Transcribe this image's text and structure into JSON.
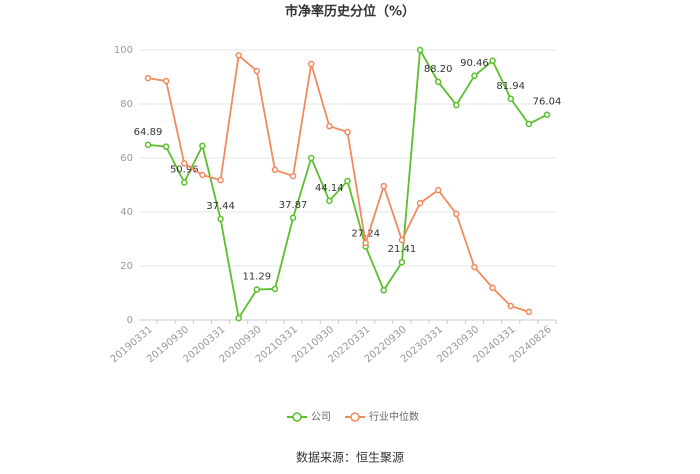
{
  "chart_data": {
    "type": "line",
    "title": "市净率历史分位（%）",
    "categories": [
      "20190331",
      null,
      "20190930",
      null,
      "20200331",
      null,
      "20200930",
      null,
      "20210331",
      null,
      "20210930",
      null,
      "20220331",
      null,
      "20220930",
      null,
      "20230331",
      null,
      "20230930",
      null,
      "20240331",
      null,
      "20240826"
    ],
    "series": [
      {
        "name": "公司",
        "color": "#5bbf2e",
        "values": [
          64.89,
          64.2,
          50.96,
          64.5,
          37.44,
          0.7,
          11.29,
          11.5,
          37.87,
          60,
          44.14,
          51.5,
          27.24,
          11,
          21.41,
          100,
          88.2,
          79.6,
          90.46,
          96,
          81.94,
          72.6,
          76.04
        ],
        "value_labels": [
          "64.89",
          null,
          "50.96",
          null,
          "37.44",
          null,
          "11.29",
          null,
          "37.87",
          null,
          "44.14",
          null,
          "27.24",
          null,
          "21.41",
          null,
          "88.20",
          null,
          "90.46",
          null,
          "81.94",
          null,
          "76.04"
        ]
      },
      {
        "name": "行业中位数",
        "color": "#f28a5f",
        "values": [
          89.6,
          88.5,
          58,
          53.7,
          51.8,
          98,
          92.2,
          55.6,
          53.3,
          94.8,
          71.8,
          69.6,
          28.5,
          49.6,
          29.6,
          43.3,
          48.1,
          39.3,
          19.6,
          11.9,
          5.2,
          3,
          null
        ]
      }
    ],
    "ylim": [
      0,
      100
    ],
    "yticks": [
      0,
      20,
      40,
      60,
      80,
      100
    ],
    "grid": true,
    "source": "数据来源：恒生聚源"
  }
}
